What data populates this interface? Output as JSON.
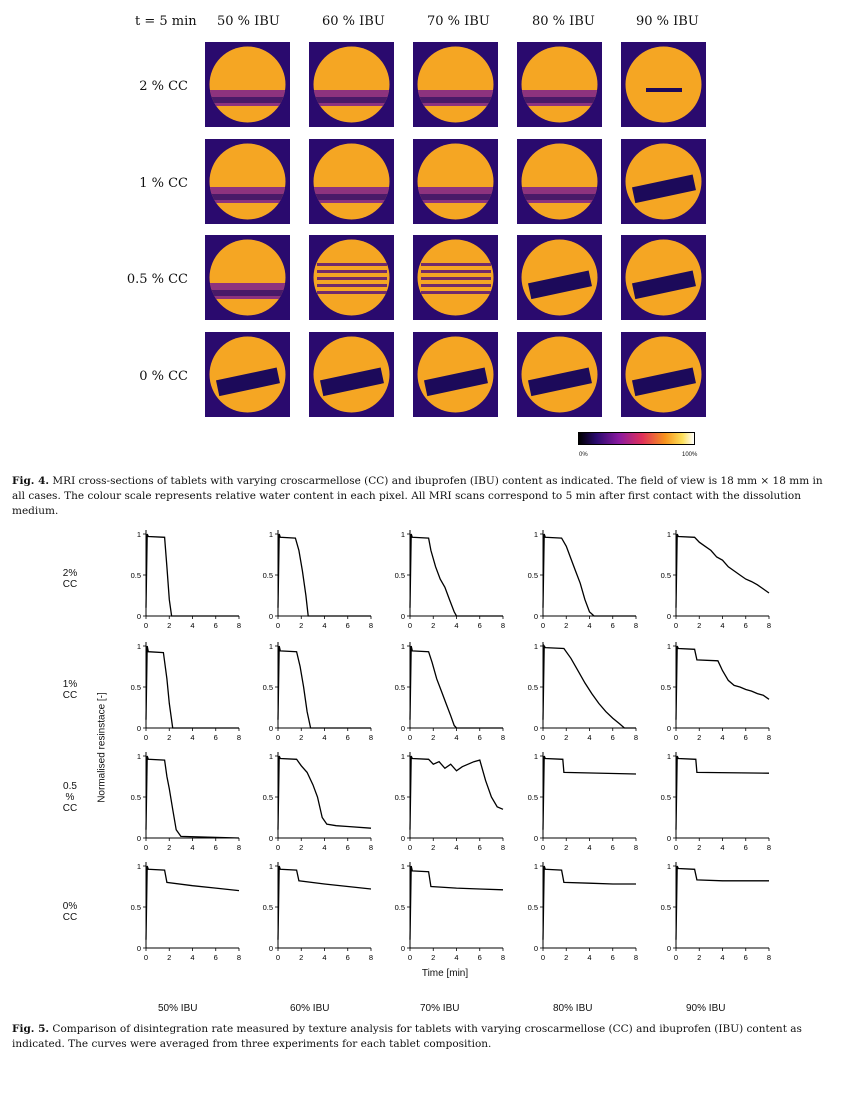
{
  "fig4": {
    "time_label": "t = 5 min",
    "columns": [
      "50 % IBU",
      "60 % IBU",
      "70 % IBU",
      "80 % IBU",
      "90 % IBU"
    ],
    "rows": [
      "2 % CC",
      "1 % CC",
      "0.5 % CC",
      "0 % CC"
    ],
    "scale_min": "0%",
    "scale_max": "100%",
    "caption_label": "Fig. 4.",
    "caption_text": "MRI cross-sections of tablets with varying croscarmellose (CC) and ibuprofen (IBU) content as indicated. The field of view is 18 mm × 18 mm in all cases. The colour scale represents relative water content in each pixel. All MRI scans correspond to 5 min after first contact with the dissolution medium."
  },
  "fig5": {
    "row_labels": [
      "2%\nCC",
      "1%\nCC",
      "0.5\n%\nCC",
      "0%\nCC"
    ],
    "col_labels": [
      "50% IBU",
      "60% IBU",
      "70% IBU",
      "80% IBU",
      "90% IBU"
    ],
    "ylabel": "Normalised resinstace [-]",
    "xlabel": "Time [min]",
    "caption_label": "Fig. 5.",
    "caption_text": "Comparison of disintegration rate measured by texture analysis for tablets with varying croscarmellose (CC) and ibuprofen (IBU) content as indicated. The curves were averaged from three experiments for each tablet composition."
  },
  "chart_data": {
    "type": "line",
    "x_ticks": [
      0,
      2,
      4,
      6,
      8
    ],
    "y_ticks": [
      0,
      0.5,
      1
    ],
    "xlabel": "Time [min]",
    "ylabel": "Normalised resinstace [-]",
    "xlim": [
      0,
      8
    ],
    "ylim": [
      0,
      1
    ],
    "grid": false,
    "panels": [
      {
        "row": "2% CC",
        "col": "50% IBU",
        "x": [
          0,
          0.1,
          0.2,
          1.6,
          1.8,
          2.0,
          2.2,
          8
        ],
        "y": [
          0.1,
          1,
          0.97,
          0.96,
          0.6,
          0.2,
          0,
          0
        ]
      },
      {
        "row": "2% CC",
        "col": "60% IBU",
        "x": [
          0,
          0.1,
          0.2,
          1.5,
          1.8,
          2.1,
          2.4,
          2.6,
          8
        ],
        "y": [
          0.1,
          1,
          0.96,
          0.95,
          0.8,
          0.55,
          0.25,
          0,
          0
        ]
      },
      {
        "row": "2% CC",
        "col": "70% IBU",
        "x": [
          0,
          0.1,
          0.2,
          1.6,
          1.8,
          2.2,
          2.6,
          3.0,
          3.4,
          3.8,
          4.0,
          8
        ],
        "y": [
          0.1,
          1,
          0.96,
          0.95,
          0.8,
          0.6,
          0.45,
          0.35,
          0.2,
          0.05,
          0,
          0
        ]
      },
      {
        "row": "2% CC",
        "col": "80% IBU",
        "x": [
          0,
          0.1,
          0.2,
          1.6,
          2.0,
          2.4,
          2.8,
          3.2,
          3.6,
          4.0,
          4.4,
          8
        ],
        "y": [
          0.1,
          1,
          0.96,
          0.95,
          0.85,
          0.7,
          0.55,
          0.4,
          0.2,
          0.05,
          0,
          0
        ]
      },
      {
        "row": "2% CC",
        "col": "90% IBU",
        "x": [
          0,
          0.1,
          0.2,
          1.6,
          2.0,
          2.5,
          3.0,
          3.5,
          4.0,
          4.5,
          5.0,
          5.5,
          6.0,
          6.5,
          7.0,
          7.5,
          8.0
        ],
        "y": [
          0.1,
          1,
          0.97,
          0.96,
          0.9,
          0.85,
          0.8,
          0.72,
          0.68,
          0.6,
          0.55,
          0.5,
          0.45,
          0.42,
          0.38,
          0.33,
          0.28
        ]
      },
      {
        "row": "1% CC",
        "col": "50% IBU",
        "x": [
          0,
          0.1,
          0.2,
          1.5,
          1.8,
          2.0,
          2.3,
          8
        ],
        "y": [
          0.1,
          1,
          0.93,
          0.92,
          0.6,
          0.3,
          0,
          0
        ]
      },
      {
        "row": "1% CC",
        "col": "60% IBU",
        "x": [
          0,
          0.1,
          0.2,
          1.6,
          1.9,
          2.2,
          2.5,
          2.8,
          8
        ],
        "y": [
          0.1,
          1,
          0.94,
          0.93,
          0.75,
          0.5,
          0.2,
          0,
          0
        ]
      },
      {
        "row": "1% CC",
        "col": "70% IBU",
        "x": [
          0,
          0.1,
          0.2,
          1.6,
          1.9,
          2.3,
          2.7,
          3.1,
          3.5,
          3.8,
          4.0,
          8
        ],
        "y": [
          0.1,
          1,
          0.94,
          0.93,
          0.8,
          0.6,
          0.45,
          0.3,
          0.15,
          0.03,
          0,
          0
        ]
      },
      {
        "row": "1% CC",
        "col": "80% IBU",
        "x": [
          0,
          0.1,
          0.2,
          1.8,
          2.4,
          3.0,
          3.6,
          4.2,
          4.8,
          5.4,
          6.0,
          6.6,
          7.0,
          8
        ],
        "y": [
          0.1,
          1,
          0.98,
          0.97,
          0.85,
          0.7,
          0.55,
          0.42,
          0.3,
          0.2,
          0.12,
          0.05,
          0,
          0
        ]
      },
      {
        "row": "1% CC",
        "col": "90% IBU",
        "x": [
          0,
          0.1,
          0.2,
          1.6,
          1.8,
          3.6,
          4.0,
          4.5,
          5.0,
          5.5,
          6.0,
          6.5,
          7.0,
          7.5,
          8.0
        ],
        "y": [
          0.1,
          1,
          0.97,
          0.96,
          0.83,
          0.82,
          0.7,
          0.58,
          0.52,
          0.5,
          0.47,
          0.45,
          0.42,
          0.4,
          0.35
        ]
      },
      {
        "row": "0.5% CC",
        "col": "50% IBU",
        "x": [
          0,
          0.1,
          0.2,
          1.6,
          1.8,
          2.0,
          2.3,
          2.6,
          3.0,
          8
        ],
        "y": [
          0.1,
          1,
          0.96,
          0.95,
          0.75,
          0.6,
          0.35,
          0.1,
          0.02,
          0
        ]
      },
      {
        "row": "0.5% CC",
        "col": "60% IBU",
        "x": [
          0,
          0.1,
          0.2,
          1.6,
          2.0,
          2.5,
          3.0,
          3.4,
          3.8,
          4.2,
          5.0,
          6.0,
          8
        ],
        "y": [
          0.1,
          1,
          0.97,
          0.96,
          0.88,
          0.8,
          0.65,
          0.5,
          0.25,
          0.17,
          0.15,
          0.14,
          0.12
        ]
      },
      {
        "row": "0.5% CC",
        "col": "70% IBU",
        "x": [
          0,
          0.1,
          0.2,
          1.6,
          2.0,
          2.5,
          3.0,
          3.5,
          4.0,
          4.5,
          5.0,
          5.5,
          6.0,
          6.5,
          7.0,
          7.5,
          8.0
        ],
        "y": [
          0.1,
          1,
          0.97,
          0.96,
          0.9,
          0.93,
          0.85,
          0.9,
          0.82,
          0.87,
          0.9,
          0.93,
          0.95,
          0.7,
          0.5,
          0.38,
          0.35
        ]
      },
      {
        "row": "0.5% CC",
        "col": "80% IBU",
        "x": [
          0,
          0.1,
          0.2,
          1.7,
          1.8,
          8
        ],
        "y": [
          0.1,
          1,
          0.97,
          0.96,
          0.8,
          0.78
        ]
      },
      {
        "row": "0.5% CC",
        "col": "90% IBU",
        "x": [
          0,
          0.1,
          0.2,
          1.7,
          1.8,
          8
        ],
        "y": [
          0.1,
          1,
          0.97,
          0.96,
          0.8,
          0.79
        ]
      },
      {
        "row": "0% CC",
        "col": "50% IBU",
        "x": [
          0,
          0.1,
          0.2,
          1.6,
          1.8,
          4.0,
          6.0,
          8
        ],
        "y": [
          0.1,
          1,
          0.96,
          0.95,
          0.8,
          0.76,
          0.73,
          0.7
        ]
      },
      {
        "row": "0% CC",
        "col": "60% IBU",
        "x": [
          0,
          0.1,
          0.2,
          1.6,
          1.8,
          4.0,
          6.0,
          8
        ],
        "y": [
          0.1,
          1,
          0.96,
          0.95,
          0.82,
          0.78,
          0.75,
          0.72
        ]
      },
      {
        "row": "0% CC",
        "col": "70% IBU",
        "x": [
          0,
          0.1,
          0.2,
          1.6,
          1.8,
          4.0,
          6.0,
          8
        ],
        "y": [
          0.1,
          1,
          0.94,
          0.93,
          0.75,
          0.73,
          0.72,
          0.71
        ]
      },
      {
        "row": "0% CC",
        "col": "80% IBU",
        "x": [
          0,
          0.1,
          0.2,
          1.6,
          1.8,
          4.0,
          6.0,
          8
        ],
        "y": [
          0.1,
          1,
          0.96,
          0.95,
          0.8,
          0.79,
          0.78,
          0.78
        ]
      },
      {
        "row": "0% CC",
        "col": "90% IBU",
        "x": [
          0,
          0.1,
          0.2,
          1.6,
          1.8,
          4.0,
          6.0,
          8
        ],
        "y": [
          0.1,
          1,
          0.97,
          0.96,
          0.83,
          0.82,
          0.82,
          0.82
        ]
      }
    ]
  },
  "colors": {
    "mri_background": "#2a0a6e",
    "mri_wet": "#f5a623",
    "mri_dry": "#1c0a5a",
    "curve": "#000000"
  }
}
